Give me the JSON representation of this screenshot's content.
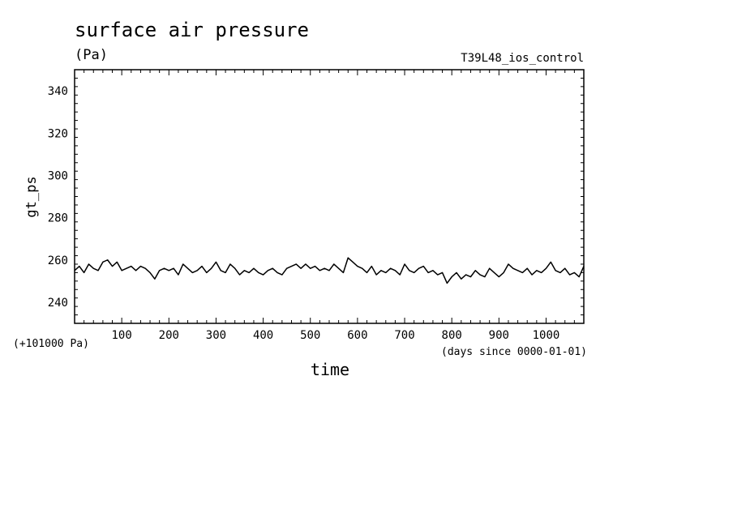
{
  "title": "surface air pressure",
  "units": "(Pa)",
  "run_name": "T39L48_ios_control",
  "y_offset_label": "(+101000 Pa)",
  "x_units_label": "(days since 0000-01-01)",
  "colors": {
    "line": "#000000",
    "axes": "#000000",
    "background": "#ffffff"
  },
  "chart_data": {
    "type": "line",
    "title": "surface air pressure",
    "xlabel": "time",
    "ylabel": "gt_ps",
    "y_units": "(Pa)",
    "y_offset": "(+101000 Pa)",
    "x_units": "(days since 0000-01-01)",
    "xlim": [
      0,
      1080
    ],
    "ylim": [
      230,
      350
    ],
    "xticks": [
      100,
      200,
      300,
      400,
      500,
      600,
      700,
      800,
      900,
      1000
    ],
    "yticks": [
      240,
      260,
      280,
      300,
      320,
      340
    ],
    "grid": false,
    "legend": "none",
    "series": [
      {
        "x": [
          0,
          10,
          20,
          30,
          40,
          50,
          60,
          70,
          80,
          90,
          100,
          110,
          120,
          130,
          140,
          150,
          160,
          170,
          180,
          190,
          200,
          210,
          220,
          230,
          240,
          250,
          260,
          270,
          280,
          290,
          300,
          310,
          320,
          330,
          340,
          350,
          360,
          370,
          380,
          390,
          400,
          410,
          420,
          430,
          440,
          450,
          460,
          470,
          480,
          490,
          500,
          510,
          520,
          530,
          540,
          550,
          560,
          570,
          580,
          590,
          600,
          610,
          620,
          630,
          640,
          650,
          660,
          670,
          680,
          690,
          700,
          710,
          720,
          730,
          740,
          750,
          760,
          770,
          780,
          790,
          800,
          810,
          820,
          830,
          840,
          850,
          860,
          870,
          880,
          890,
          900,
          910,
          920,
          930,
          940,
          950,
          960,
          970,
          980,
          990,
          1000,
          1010,
          1020,
          1030,
          1040,
          1050,
          1060,
          1070,
          1080
        ],
        "values": [
          255,
          257,
          254,
          258,
          256,
          255,
          259,
          260,
          257,
          259,
          255,
          256,
          257,
          255,
          257,
          256,
          254,
          251,
          255,
          256,
          255,
          256,
          253,
          258,
          256,
          254,
          255,
          257,
          254,
          256,
          259,
          255,
          254,
          258,
          256,
          253,
          255,
          254,
          256,
          254,
          253,
          255,
          256,
          254,
          253,
          256,
          257,
          258,
          256,
          258,
          256,
          257,
          255,
          256,
          255,
          258,
          256,
          254,
          261,
          259,
          257,
          256,
          254,
          257,
          253,
          255,
          254,
          256,
          255,
          253,
          258,
          255,
          254,
          256,
          257,
          254,
          255,
          253,
          254,
          249,
          252,
          254,
          251,
          253,
          252,
          255,
          253,
          252,
          256,
          254,
          252,
          254,
          258,
          256,
          255,
          254,
          256,
          253,
          255,
          254,
          256,
          259,
          255,
          254,
          256,
          253,
          254,
          252,
          257
        ]
      }
    ]
  }
}
